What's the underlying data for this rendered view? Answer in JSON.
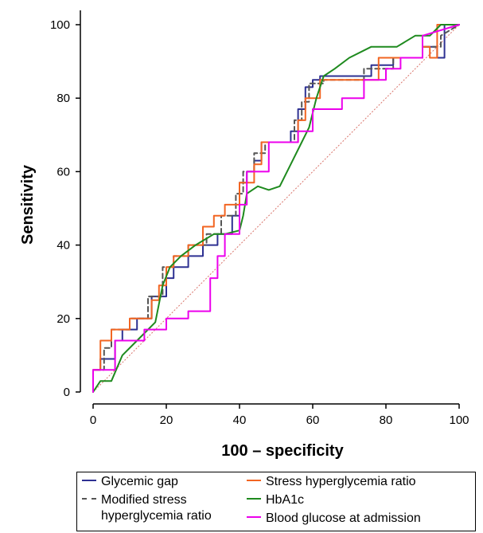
{
  "chart_data": {
    "type": "line",
    "title": "",
    "xlabel": "100 – specificity",
    "ylabel": "Sensitivity",
    "xlim": [
      0,
      100
    ],
    "ylim": [
      0,
      100
    ],
    "xticks": [
      "0",
      "20",
      "40",
      "60",
      "80",
      "100"
    ],
    "yticks": [
      "0",
      "20",
      "40",
      "60",
      "80",
      "100"
    ],
    "grid": false,
    "legend_position": "bottom",
    "reference_line": {
      "x": [
        0,
        100
      ],
      "y": [
        0,
        100
      ],
      "color": "#d9746b",
      "style": "dotted"
    },
    "series": [
      {
        "name": "Glycemic gap",
        "color": "#2e3192",
        "style": "step",
        "x": [
          0,
          0,
          2,
          2,
          6,
          6,
          8,
          8,
          12,
          12,
          16,
          16,
          20,
          20,
          22,
          22,
          26,
          26,
          30,
          30,
          34,
          34,
          38,
          38,
          40,
          40,
          42,
          42,
          44,
          44,
          46,
          46,
          54,
          54,
          56,
          56,
          58,
          58,
          60,
          60,
          62,
          62,
          76,
          76,
          82,
          82,
          90,
          90,
          94,
          94,
          96,
          96,
          100
        ],
        "y": [
          0,
          6,
          6,
          9,
          9,
          14,
          14,
          17,
          17,
          20,
          20,
          26,
          26,
          31,
          31,
          34,
          34,
          37,
          37,
          40,
          40,
          43,
          43,
          48,
          48,
          57,
          57,
          60,
          60,
          63,
          63,
          68,
          68,
          71,
          71,
          77,
          77,
          83,
          83,
          85,
          85,
          86,
          86,
          89,
          89,
          91,
          91,
          94,
          94,
          91,
          91,
          100,
          100
        ]
      },
      {
        "name": "Modified stress hyperglycemia ratio",
        "color": "#555555",
        "style": "step-dashed",
        "x": [
          0,
          0,
          3,
          3,
          5,
          5,
          10,
          10,
          15,
          15,
          19,
          19,
          22,
          22,
          26,
          26,
          31,
          31,
          35,
          35,
          39,
          39,
          41,
          41,
          44,
          44,
          47,
          47,
          55,
          55,
          57,
          57,
          59,
          59,
          63,
          63,
          74,
          74,
          82,
          82,
          90,
          90,
          95,
          95,
          100
        ],
        "y": [
          0,
          6,
          6,
          12,
          12,
          17,
          17,
          20,
          20,
          26,
          26,
          34,
          34,
          37,
          37,
          40,
          40,
          43,
          43,
          48,
          48,
          54,
          54,
          60,
          60,
          65,
          65,
          68,
          68,
          74,
          74,
          79,
          79,
          84,
          84,
          85,
          85,
          88,
          88,
          91,
          91,
          94,
          94,
          97,
          100
        ]
      },
      {
        "name": "Stress hyperglycemia ratio",
        "color": "#f26522",
        "style": "step",
        "x": [
          0,
          0,
          2,
          2,
          5,
          5,
          10,
          10,
          16,
          16,
          18,
          18,
          20,
          20,
          22,
          22,
          26,
          26,
          30,
          30,
          33,
          33,
          36,
          36,
          40,
          40,
          44,
          44,
          46,
          46,
          56,
          56,
          58,
          58,
          62,
          62,
          78,
          78,
          90,
          90,
          92,
          92,
          94,
          94,
          100
        ],
        "y": [
          0,
          6,
          6,
          14,
          14,
          17,
          17,
          20,
          20,
          25,
          25,
          29,
          29,
          34,
          34,
          37,
          37,
          40,
          40,
          45,
          45,
          48,
          48,
          51,
          51,
          57,
          57,
          62,
          62,
          68,
          68,
          74,
          74,
          80,
          80,
          85,
          85,
          91,
          91,
          94,
          94,
          91,
          91,
          100,
          100
        ]
      },
      {
        "name": "HbA1c",
        "color": "#1e8a1e",
        "style": "smooth",
        "x": [
          0,
          2,
          5,
          8,
          12,
          17,
          19,
          21,
          24,
          28,
          33,
          36,
          40,
          41,
          42,
          45,
          48,
          51,
          54,
          57,
          59,
          61,
          63,
          66,
          70,
          76,
          83,
          88,
          92,
          95,
          100
        ],
        "y": [
          0,
          3,
          3,
          10,
          14,
          19,
          29,
          34,
          37,
          40,
          43,
          43,
          44,
          48,
          54,
          56,
          55,
          56,
          62,
          68,
          72,
          80,
          86,
          88,
          91,
          94,
          94,
          97,
          97,
          100,
          100
        ]
      },
      {
        "name": "Blood glucose at admission",
        "color": "#ec00ec",
        "style": "step",
        "x": [
          0,
          0,
          6,
          6,
          14,
          14,
          20,
          20,
          26,
          26,
          32,
          32,
          34,
          34,
          36,
          36,
          40,
          40,
          42,
          42,
          48,
          48,
          56,
          56,
          60,
          60,
          68,
          68,
          74,
          74,
          80,
          80,
          84,
          84,
          90,
          90,
          100
        ],
        "y": [
          0,
          6,
          6,
          14,
          14,
          17,
          17,
          20,
          20,
          22,
          22,
          31,
          31,
          37,
          37,
          43,
          43,
          51,
          51,
          60,
          60,
          68,
          68,
          71,
          71,
          77,
          77,
          80,
          80,
          85,
          85,
          88,
          88,
          91,
          91,
          97,
          100
        ]
      }
    ]
  },
  "legend": {
    "items": [
      {
        "label": "Glycemic gap",
        "color": "#2e3192",
        "dash": "solid"
      },
      {
        "label": "Stress hyperglycemia ratio",
        "color": "#f26522",
        "dash": "solid"
      },
      {
        "label": "Modified stress",
        "label_cont": "hyperglycemia ratio",
        "color": "#555555",
        "dash": "dashed"
      },
      {
        "label": "HbA1c",
        "color": "#1e8a1e",
        "dash": "solid"
      },
      {
        "label": "Blood glucose at admission",
        "color": "#ec00ec",
        "dash": "solid"
      }
    ]
  }
}
